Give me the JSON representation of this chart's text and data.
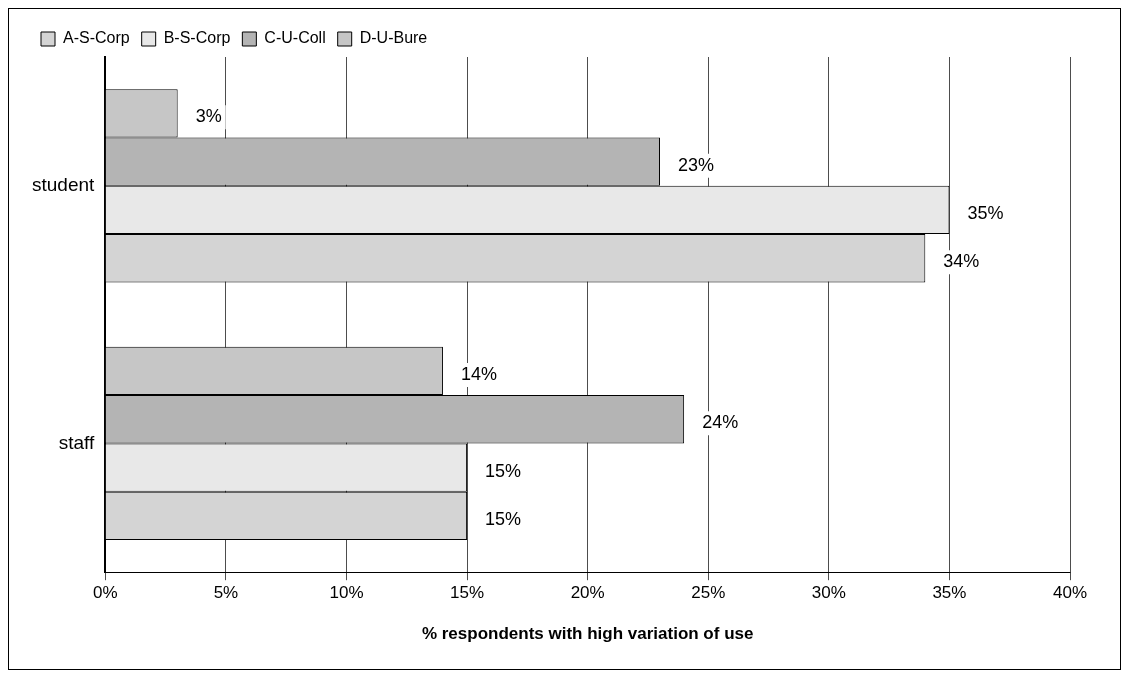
{
  "chart_data": {
    "type": "bar",
    "orientation": "horizontal",
    "categories": [
      "student",
      "staff"
    ],
    "series": [
      {
        "name": "A-S-Corp",
        "color": "#d4d4d4",
        "values": [
          34,
          15
        ],
        "value_labels": [
          "34%",
          "15%"
        ]
      },
      {
        "name": "B-S-Corp",
        "color": "#e8e8e8",
        "values": [
          35,
          15
        ],
        "value_labels": [
          "35%",
          "15%"
        ]
      },
      {
        "name": "C-U-Coll",
        "color": "#b4b4b4",
        "values": [
          23,
          24
        ],
        "value_labels": [
          "23%",
          "24%"
        ]
      },
      {
        "name": "D-U-Bure",
        "color": "#c6c6c6",
        "values": [
          3,
          14
        ],
        "value_labels": [
          "3%",
          "14%"
        ]
      }
    ],
    "xlim": [
      0,
      40
    ],
    "xticks": [
      {
        "value": 0,
        "label": "0%"
      },
      {
        "value": 5,
        "label": "5%"
      },
      {
        "value": 10,
        "label": "10%"
      },
      {
        "value": 15,
        "label": "15%"
      },
      {
        "value": 20,
        "label": "20%"
      },
      {
        "value": 25,
        "label": "25%"
      },
      {
        "value": 30,
        "label": "30%"
      },
      {
        "value": 35,
        "label": "35%"
      },
      {
        "value": 40,
        "label": "40%"
      }
    ],
    "xlabel": "% respondents with high variation of use",
    "grid": "x",
    "legend": "top left"
  }
}
